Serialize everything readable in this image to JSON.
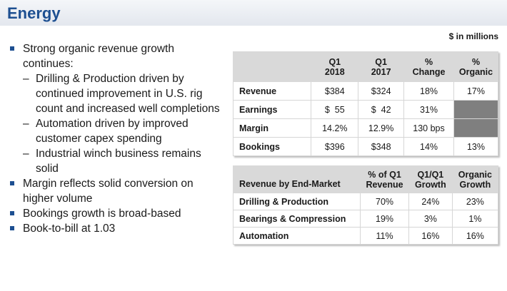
{
  "title": "Energy",
  "units": "$ in millions",
  "bullets": [
    {
      "text": "Strong organic revenue growth continues:",
      "subs": [
        "Drilling & Production driven by continued improvement in U.S. rig count and increased well completions",
        "Automation driven by improved customer capex spending",
        "Industrial winch business remains solid"
      ]
    },
    {
      "text": "Margin reflects solid conversion on higher volume",
      "subs": []
    },
    {
      "text": "Bookings growth is broad-based",
      "subs": []
    },
    {
      "text": "Book-to-bill at 1.03",
      "subs": []
    }
  ],
  "summary_table": {
    "headers": [
      "",
      "Q1 2018",
      "Q1 2017",
      "% Change",
      "% Organic"
    ],
    "rows": [
      {
        "label": "Revenue",
        "q1_2018": "$384",
        "q1_2017": "$324",
        "change": "18%",
        "organic": "17%"
      },
      {
        "label": "Earnings",
        "q1_2018": "$  55",
        "q1_2017": "$  42",
        "change": "31%",
        "organic": ""
      },
      {
        "label": "Margin",
        "q1_2018": "14.2%",
        "q1_2017": "12.9%",
        "change": "130 bps",
        "organic": ""
      },
      {
        "label": "Bookings",
        "q1_2018": "$396",
        "q1_2017": "$348",
        "change": "14%",
        "organic": "13%"
      }
    ]
  },
  "market_table": {
    "headers": [
      "Revenue by End-Market",
      "% of Q1 Revenue",
      "Q1/Q1 Growth",
      "Organic Growth"
    ],
    "rows": [
      {
        "label": "Drilling & Production",
        "pct": "70%",
        "growth": "24%",
        "organic": "23%"
      },
      {
        "label": "Bearings & Compression",
        "pct": "19%",
        "growth": "3%",
        "organic": "1%"
      },
      {
        "label": "Automation",
        "pct": "11%",
        "growth": "16%",
        "organic": "16%"
      }
    ]
  }
}
